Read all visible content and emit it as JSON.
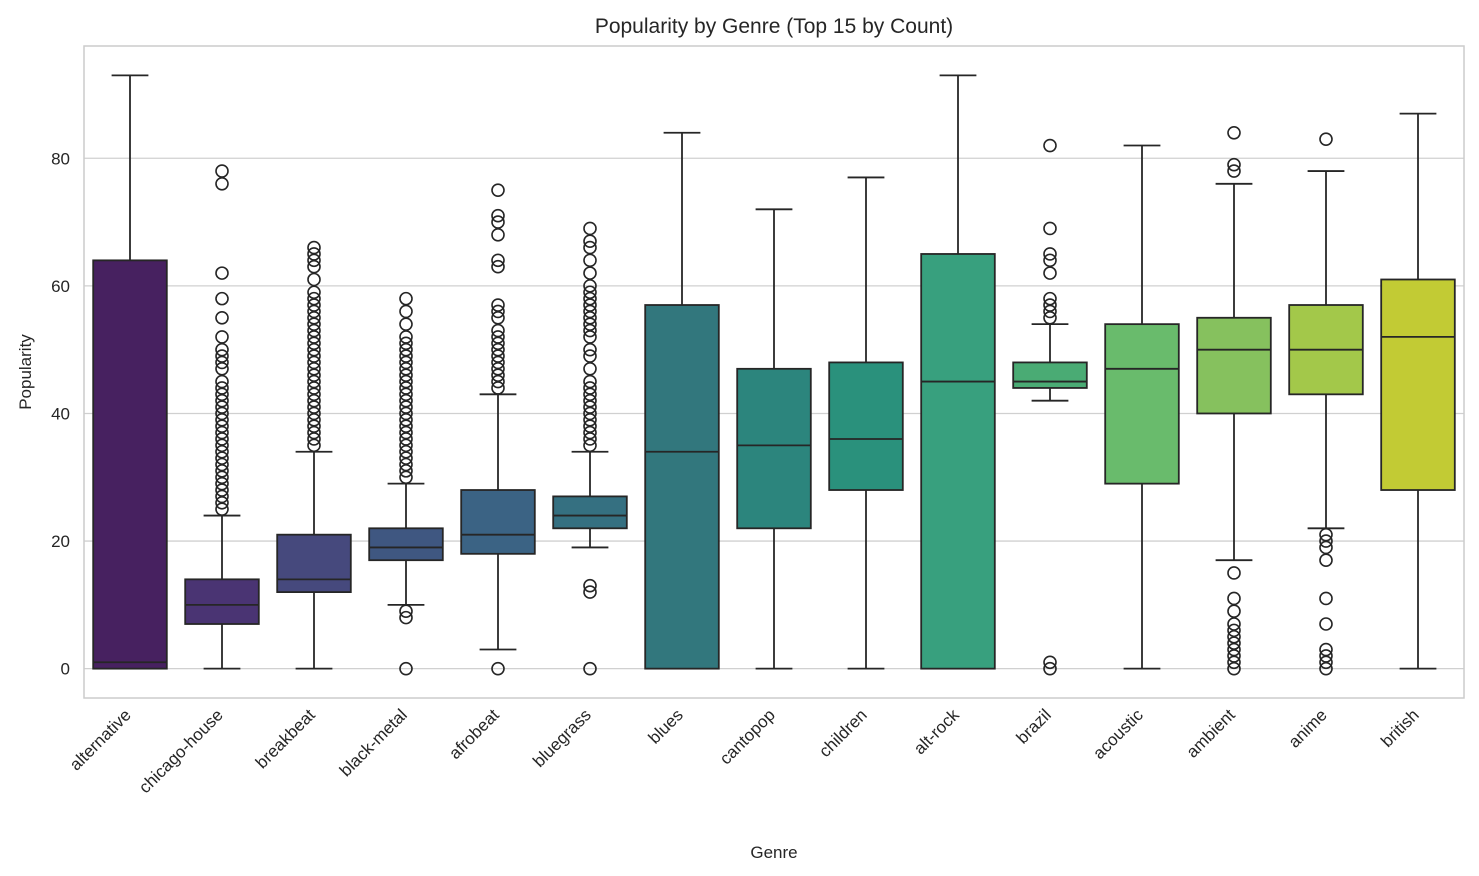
{
  "chart_data": {
    "type": "box",
    "title": "Popularity by Genre (Top 15 by Count)",
    "xlabel": "Genre",
    "ylabel": "Popularity",
    "ylim": [
      -4.6,
      97.6
    ],
    "yticks": [
      0,
      20,
      40,
      60,
      80
    ],
    "grid": true,
    "categories": [
      "alternative",
      "chicago-house",
      "breakbeat",
      "black-metal",
      "afrobeat",
      "bluegrass",
      "blues",
      "cantopop",
      "children",
      "alt-rock",
      "brazil",
      "acoustic",
      "ambient",
      "anime",
      "british"
    ],
    "colors": [
      "#472160",
      "#4a3473",
      "#46497d",
      "#3f5781",
      "#3b6384",
      "#357081",
      "#32777d",
      "#2c857d",
      "#2a917c",
      "#38a07e",
      "#4aab74",
      "#69bb6c",
      "#86c15e",
      "#a3c84a",
      "#c2cb34"
    ],
    "boxes": [
      {
        "whislo": 0,
        "q1": 0,
        "med": 1,
        "q3": 64,
        "whishi": 93,
        "fliers": []
      },
      {
        "whislo": 0,
        "q1": 7,
        "med": 10,
        "q3": 14,
        "whishi": 24,
        "fliers": [
          25,
          26,
          27,
          28,
          29,
          30,
          31,
          32,
          33,
          34,
          35,
          36,
          37,
          38,
          39,
          40,
          41,
          42,
          43,
          44,
          45,
          47,
          48,
          49,
          50,
          52,
          55,
          58,
          62,
          76,
          78
        ]
      },
      {
        "whislo": 0,
        "q1": 12,
        "med": 14,
        "q3": 21,
        "whishi": 34,
        "fliers": [
          35,
          36,
          37,
          38,
          39,
          40,
          41,
          42,
          43,
          44,
          45,
          46,
          47,
          48,
          49,
          50,
          51,
          52,
          53,
          54,
          55,
          56,
          57,
          58,
          59,
          61,
          63,
          64,
          65,
          66
        ]
      },
      {
        "whislo": 10,
        "q1": 17,
        "med": 19,
        "q3": 22,
        "whishi": 29,
        "fliers": [
          0,
          8,
          9,
          30,
          31,
          32,
          33,
          34,
          35,
          36,
          37,
          38,
          39,
          40,
          41,
          42,
          43,
          44,
          45,
          46,
          47,
          48,
          49,
          50,
          51,
          52,
          54,
          56,
          58
        ]
      },
      {
        "whislo": 3,
        "q1": 18,
        "med": 21,
        "q3": 28,
        "whishi": 43,
        "fliers": [
          0,
          44,
          45,
          46,
          47,
          48,
          49,
          50,
          51,
          52,
          53,
          55,
          56,
          57,
          63,
          64,
          68,
          70,
          71,
          75
        ]
      },
      {
        "whislo": 19,
        "q1": 22,
        "med": 24,
        "q3": 27,
        "whishi": 34,
        "fliers": [
          0,
          12,
          13,
          35,
          36,
          37,
          38,
          39,
          40,
          41,
          42,
          43,
          44,
          45,
          47,
          49,
          50,
          52,
          53,
          54,
          55,
          56,
          57,
          58,
          59,
          60,
          62,
          64,
          66,
          67,
          69
        ]
      },
      {
        "whislo": 0,
        "q1": 0,
        "med": 34,
        "q3": 57,
        "whishi": 84,
        "fliers": []
      },
      {
        "whislo": 0,
        "q1": 22,
        "med": 35,
        "q3": 47,
        "whishi": 72,
        "fliers": []
      },
      {
        "whislo": 0,
        "q1": 28,
        "med": 36,
        "q3": 48,
        "whishi": 77,
        "fliers": []
      },
      {
        "whislo": 0,
        "q1": 0,
        "med": 45,
        "q3": 65,
        "whishi": 93,
        "fliers": []
      },
      {
        "whislo": 42,
        "q1": 44,
        "med": 45,
        "q3": 48,
        "whishi": 54,
        "fliers": [
          0,
          1,
          55,
          56,
          57,
          58,
          62,
          64,
          65,
          69,
          82
        ]
      },
      {
        "whislo": 0,
        "q1": 29,
        "med": 47,
        "q3": 54,
        "whishi": 82,
        "fliers": []
      },
      {
        "whislo": 17,
        "q1": 40,
        "med": 50,
        "q3": 55,
        "whishi": 76,
        "fliers": [
          0,
          1,
          2,
          3,
          4,
          5,
          6,
          7,
          9,
          11,
          15,
          78,
          79,
          84
        ]
      },
      {
        "whislo": 22,
        "q1": 43,
        "med": 50,
        "q3": 57,
        "whishi": 78,
        "fliers": [
          0,
          1,
          2,
          3,
          7,
          11,
          17,
          19,
          20,
          21,
          83
        ]
      },
      {
        "whislo": 0,
        "q1": 28,
        "med": 52,
        "q3": 61,
        "whishi": 87,
        "fliers": []
      }
    ]
  }
}
